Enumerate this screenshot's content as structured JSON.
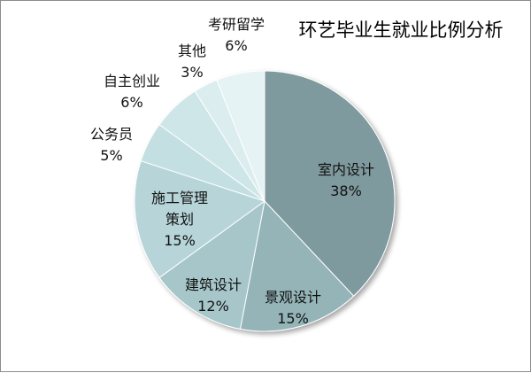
{
  "chart_data": {
    "type": "pie",
    "title": "环艺毕业生就业比例分析",
    "slices": [
      {
        "label": "室内设计",
        "value": 38,
        "value_label": "38%",
        "color": "#7f9a9e"
      },
      {
        "label": "景观设计",
        "value": 15,
        "value_label": "15%",
        "color": "#94b4b8"
      },
      {
        "label": "建筑设计",
        "value": 12,
        "value_label": "12%",
        "color": "#a6c6ca"
      },
      {
        "label": "施工管理策划",
        "value": 15,
        "value_label": "15%",
        "color": "#b7d5d9"
      },
      {
        "label": "公务员",
        "value": 5,
        "value_label": "5%",
        "color": "#c4dfe2"
      },
      {
        "label": "自主创业",
        "value": 6,
        "value_label": "6%",
        "color": "#cfe6e9"
      },
      {
        "label": "其他",
        "value": 3,
        "value_label": "3%",
        "color": "#dbedef"
      },
      {
        "label": "考研留学",
        "value": 6,
        "value_label": "6%",
        "color": "#e6f3f5"
      }
    ]
  }
}
